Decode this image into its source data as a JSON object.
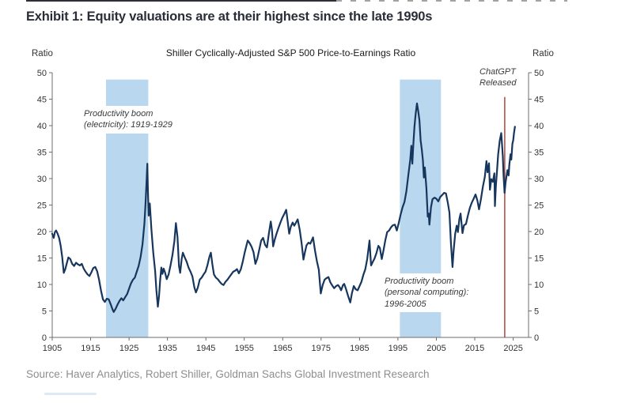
{
  "header": {
    "title": "Exhibit 1: Equity valuations are at their highest since the late 1990s"
  },
  "footer": {
    "source": "Source: Haver Analytics, Robert Shiller, Goldman Sachs Global Investment Research"
  },
  "annotations": {
    "boom1": {
      "lines": [
        "Productivity boom",
        "(electricity): 1919-1929"
      ]
    },
    "boom2": {
      "lines": [
        "Productivity boom",
        "(personal computing):",
        "1996-2005"
      ]
    },
    "event": {
      "lines": [
        "ChatGPT",
        "Released"
      ]
    }
  },
  "chart_data": {
    "type": "line",
    "title": "Shiller Cyclically-Adjusted S&P 500 Price-to-Earnings Ratio",
    "grid": false,
    "legend": "none",
    "line_color": "#17365d",
    "y_axis": {
      "label_left": "Ratio",
      "label_right": "Ratio",
      "min": 0,
      "max": 50,
      "tick_step": 5
    },
    "x_axis": {
      "min": 1905,
      "max": 2029,
      "ticks": [
        1905,
        1915,
        1925,
        1935,
        1945,
        1955,
        1965,
        1975,
        1985,
        1995,
        2005,
        2015,
        2025
      ]
    },
    "shaded_regions": [
      {
        "label": "Productivity boom (electricity): 1919-1929",
        "from": 1919,
        "to": 1930,
        "top_value": 48.7,
        "color": "#b9d7ee"
      },
      {
        "label": "Productivity boom (personal computing): 1996-2005",
        "from": 1995.5,
        "to": 2006.2,
        "top_value": 48.7,
        "color": "#b9d7ee"
      }
    ],
    "event_line": {
      "label": "ChatGPT Released",
      "year": 2022.8,
      "top_value": 45.4,
      "color": "#ab3a30"
    },
    "series": [
      {
        "name": "Shiller Cyclically-Adjusted P/E",
        "points": [
          [
            1905.0,
            19.6
          ],
          [
            1905.4,
            18.8
          ],
          [
            1905.7,
            19.9
          ],
          [
            1906.0,
            20.2
          ],
          [
            1906.4,
            19.6
          ],
          [
            1906.8,
            18.8
          ],
          [
            1907.2,
            17.3
          ],
          [
            1907.6,
            15.2
          ],
          [
            1908.0,
            12.2
          ],
          [
            1908.4,
            12.9
          ],
          [
            1908.8,
            14.0
          ],
          [
            1909.2,
            15.1
          ],
          [
            1909.7,
            14.8
          ],
          [
            1910.2,
            13.9
          ],
          [
            1910.7,
            13.5
          ],
          [
            1911.2,
            14.1
          ],
          [
            1911.7,
            13.8
          ],
          [
            1912.2,
            13.6
          ],
          [
            1912.7,
            13.9
          ],
          [
            1913.2,
            13.0
          ],
          [
            1913.7,
            12.4
          ],
          [
            1914.2,
            11.9
          ],
          [
            1914.7,
            11.6
          ],
          [
            1915.2,
            12.3
          ],
          [
            1915.7,
            13.1
          ],
          [
            1916.2,
            13.3
          ],
          [
            1916.7,
            12.5
          ],
          [
            1917.2,
            10.9
          ],
          [
            1917.7,
            8.8
          ],
          [
            1918.2,
            7.2
          ],
          [
            1918.7,
            6.7
          ],
          [
            1919.2,
            7.3
          ],
          [
            1919.7,
            7.2
          ],
          [
            1920.2,
            6.3
          ],
          [
            1920.7,
            5.3
          ],
          [
            1921.0,
            4.8
          ],
          [
            1921.5,
            5.4
          ],
          [
            1922.0,
            6.2
          ],
          [
            1922.5,
            6.9
          ],
          [
            1923.0,
            7.4
          ],
          [
            1923.5,
            7.0
          ],
          [
            1924.0,
            7.6
          ],
          [
            1924.5,
            8.2
          ],
          [
            1925.0,
            9.2
          ],
          [
            1925.5,
            10.2
          ],
          [
            1926.0,
            10.9
          ],
          [
            1926.5,
            11.3
          ],
          [
            1927.0,
            12.4
          ],
          [
            1927.5,
            13.5
          ],
          [
            1928.0,
            15.2
          ],
          [
            1928.5,
            17.6
          ],
          [
            1929.0,
            21.5
          ],
          [
            1929.3,
            25.5
          ],
          [
            1929.6,
            30.0
          ],
          [
            1929.75,
            32.8
          ],
          [
            1929.9,
            28.0
          ],
          [
            1930.1,
            23.0
          ],
          [
            1930.4,
            25.3
          ],
          [
            1930.8,
            20.5
          ],
          [
            1931.3,
            16.0
          ],
          [
            1931.8,
            12.5
          ],
          [
            1932.1,
            9.0
          ],
          [
            1932.5,
            5.8
          ],
          [
            1932.8,
            7.8
          ],
          [
            1933.1,
            10.8
          ],
          [
            1933.4,
            13.2
          ],
          [
            1933.7,
            12.0
          ],
          [
            1934.0,
            13.0
          ],
          [
            1934.4,
            12.2
          ],
          [
            1934.8,
            11.0
          ],
          [
            1935.3,
            11.9
          ],
          [
            1935.8,
            13.6
          ],
          [
            1936.3,
            15.6
          ],
          [
            1936.8,
            18.2
          ],
          [
            1937.2,
            21.6
          ],
          [
            1937.6,
            19.0
          ],
          [
            1938.0,
            13.5
          ],
          [
            1938.3,
            12.2
          ],
          [
            1938.7,
            14.8
          ],
          [
            1939.0,
            16.0
          ],
          [
            1939.5,
            15.1
          ],
          [
            1940.0,
            14.3
          ],
          [
            1940.5,
            13.2
          ],
          [
            1941.0,
            12.4
          ],
          [
            1941.5,
            11.5
          ],
          [
            1942.0,
            9.5
          ],
          [
            1942.4,
            8.5
          ],
          [
            1942.9,
            9.4
          ],
          [
            1943.4,
            10.9
          ],
          [
            1943.9,
            11.3
          ],
          [
            1944.4,
            11.9
          ],
          [
            1944.9,
            12.4
          ],
          [
            1945.4,
            13.6
          ],
          [
            1945.9,
            15.2
          ],
          [
            1946.3,
            16.0
          ],
          [
            1946.7,
            13.8
          ],
          [
            1947.1,
            11.9
          ],
          [
            1947.6,
            11.3
          ],
          [
            1948.1,
            11.0
          ],
          [
            1948.6,
            10.5
          ],
          [
            1949.1,
            10.1
          ],
          [
            1949.6,
            9.9
          ],
          [
            1950.1,
            10.5
          ],
          [
            1950.6,
            10.9
          ],
          [
            1951.1,
            11.4
          ],
          [
            1951.6,
            11.9
          ],
          [
            1952.1,
            12.4
          ],
          [
            1952.6,
            12.6
          ],
          [
            1953.1,
            12.9
          ],
          [
            1953.6,
            12.1
          ],
          [
            1954.1,
            12.9
          ],
          [
            1954.6,
            14.3
          ],
          [
            1955.1,
            16.0
          ],
          [
            1955.6,
            17.5
          ],
          [
            1955.9,
            18.3
          ],
          [
            1956.4,
            17.8
          ],
          [
            1956.9,
            17.1
          ],
          [
            1957.4,
            16.1
          ],
          [
            1957.9,
            13.9
          ],
          [
            1958.4,
            14.9
          ],
          [
            1958.9,
            16.6
          ],
          [
            1959.4,
            18.3
          ],
          [
            1959.9,
            18.8
          ],
          [
            1960.4,
            17.5
          ],
          [
            1960.9,
            17.0
          ],
          [
            1961.4,
            19.6
          ],
          [
            1961.9,
            21.9
          ],
          [
            1962.2,
            20.3
          ],
          [
            1962.5,
            17.2
          ],
          [
            1962.9,
            18.4
          ],
          [
            1963.4,
            19.6
          ],
          [
            1963.9,
            20.7
          ],
          [
            1964.4,
            21.7
          ],
          [
            1964.9,
            22.6
          ],
          [
            1965.4,
            23.3
          ],
          [
            1965.9,
            24.1
          ],
          [
            1966.3,
            21.9
          ],
          [
            1966.7,
            19.6
          ],
          [
            1967.1,
            20.9
          ],
          [
            1967.6,
            21.7
          ],
          [
            1968.0,
            21.1
          ],
          [
            1968.4,
            21.6
          ],
          [
            1968.9,
            22.3
          ],
          [
            1969.4,
            20.4
          ],
          [
            1969.9,
            17.9
          ],
          [
            1970.4,
            14.7
          ],
          [
            1970.8,
            16.1
          ],
          [
            1971.2,
            17.4
          ],
          [
            1971.7,
            17.9
          ],
          [
            1972.2,
            17.7
          ],
          [
            1972.9,
            18.9
          ],
          [
            1973.4,
            16.4
          ],
          [
            1973.9,
            14.4
          ],
          [
            1974.4,
            12.8
          ],
          [
            1974.9,
            8.3
          ],
          [
            1975.4,
            9.9
          ],
          [
            1975.9,
            10.9
          ],
          [
            1976.4,
            11.2
          ],
          [
            1976.9,
            11.4
          ],
          [
            1977.4,
            10.4
          ],
          [
            1977.9,
            9.8
          ],
          [
            1978.4,
            9.3
          ],
          [
            1978.9,
            9.7
          ],
          [
            1979.4,
            9.9
          ],
          [
            1979.9,
            9.4
          ],
          [
            1980.2,
            8.9
          ],
          [
            1980.7,
            9.9
          ],
          [
            1981.0,
            10.1
          ],
          [
            1981.5,
            9.1
          ],
          [
            1982.0,
            7.9
          ],
          [
            1982.6,
            6.6
          ],
          [
            1983.0,
            8.3
          ],
          [
            1983.5,
            9.7
          ],
          [
            1984.0,
            9.1
          ],
          [
            1984.5,
            8.9
          ],
          [
            1985.0,
            9.7
          ],
          [
            1985.5,
            10.5
          ],
          [
            1986.0,
            11.8
          ],
          [
            1986.5,
            12.9
          ],
          [
            1987.0,
            14.8
          ],
          [
            1987.6,
            18.3
          ],
          [
            1987.8,
            15.8
          ],
          [
            1988.0,
            13.6
          ],
          [
            1988.4,
            14.2
          ],
          [
            1988.9,
            14.9
          ],
          [
            1989.4,
            15.9
          ],
          [
            1989.9,
            17.3
          ],
          [
            1990.3,
            16.9
          ],
          [
            1990.8,
            14.8
          ],
          [
            1991.2,
            16.3
          ],
          [
            1991.7,
            18.3
          ],
          [
            1992.2,
            19.9
          ],
          [
            1992.7,
            20.2
          ],
          [
            1993.2,
            20.8
          ],
          [
            1993.7,
            21.2
          ],
          [
            1994.2,
            21.3
          ],
          [
            1994.7,
            20.2
          ],
          [
            1995.2,
            21.6
          ],
          [
            1995.7,
            23.2
          ],
          [
            1996.2,
            24.6
          ],
          [
            1996.7,
            25.6
          ],
          [
            1997.2,
            27.6
          ],
          [
            1997.7,
            30.6
          ],
          [
            1998.2,
            33.6
          ],
          [
            1998.5,
            36.2
          ],
          [
            1998.75,
            32.8
          ],
          [
            1999.0,
            36.5
          ],
          [
            1999.3,
            39.8
          ],
          [
            1999.6,
            42.2
          ],
          [
            1999.95,
            44.2
          ],
          [
            2000.3,
            42.6
          ],
          [
            2000.6,
            41.0
          ],
          [
            2000.9,
            37.2
          ],
          [
            2001.2,
            35.6
          ],
          [
            2001.5,
            33.4
          ],
          [
            2001.75,
            30.2
          ],
          [
            2002.0,
            32.1
          ],
          [
            2002.4,
            28.2
          ],
          [
            2002.75,
            22.8
          ],
          [
            2003.0,
            23.4
          ],
          [
            2003.2,
            21.3
          ],
          [
            2003.6,
            24.6
          ],
          [
            2004.0,
            26.1
          ],
          [
            2004.5,
            26.4
          ],
          [
            2005.0,
            26.2
          ],
          [
            2005.5,
            25.7
          ],
          [
            2006.0,
            26.5
          ],
          [
            2006.5,
            26.9
          ],
          [
            2007.0,
            27.3
          ],
          [
            2007.5,
            27.2
          ],
          [
            2008.0,
            25.4
          ],
          [
            2008.4,
            23.6
          ],
          [
            2008.8,
            17.8
          ],
          [
            2009.2,
            13.3
          ],
          [
            2009.5,
            16.4
          ],
          [
            2009.9,
            19.6
          ],
          [
            2010.3,
            21.1
          ],
          [
            2010.6,
            19.9
          ],
          [
            2011.0,
            22.4
          ],
          [
            2011.3,
            23.4
          ],
          [
            2011.8,
            19.7
          ],
          [
            2012.2,
            21.2
          ],
          [
            2012.7,
            21.4
          ],
          [
            2013.2,
            23.0
          ],
          [
            2013.7,
            24.4
          ],
          [
            2014.2,
            25.4
          ],
          [
            2014.7,
            26.2
          ],
          [
            2015.2,
            27.0
          ],
          [
            2015.7,
            25.8
          ],
          [
            2016.1,
            24.2
          ],
          [
            2016.6,
            26.1
          ],
          [
            2017.1,
            28.4
          ],
          [
            2017.6,
            30.3
          ],
          [
            2018.05,
            33.3
          ],
          [
            2018.3,
            31.2
          ],
          [
            2018.7,
            32.9
          ],
          [
            2018.95,
            27.9
          ],
          [
            2019.3,
            29.9
          ],
          [
            2019.7,
            29.4
          ],
          [
            2020.1,
            31.0
          ],
          [
            2020.25,
            24.8
          ],
          [
            2020.5,
            28.6
          ],
          [
            2020.8,
            31.6
          ],
          [
            2021.1,
            34.6
          ],
          [
            2021.5,
            37.2
          ],
          [
            2021.9,
            38.6
          ],
          [
            2022.1,
            36.4
          ],
          [
            2022.3,
            34.2
          ],
          [
            2022.5,
            30.6
          ],
          [
            2022.75,
            27.3
          ],
          [
            2023.0,
            29.2
          ],
          [
            2023.2,
            30.1
          ],
          [
            2023.5,
            31.6
          ],
          [
            2023.8,
            30.6
          ],
          [
            2024.0,
            32.6
          ],
          [
            2024.3,
            34.6
          ],
          [
            2024.5,
            33.6
          ],
          [
            2024.8,
            36.6
          ],
          [
            2025.0,
            37.2
          ],
          [
            2025.2,
            38.6
          ],
          [
            2025.45,
            39.8
          ]
        ]
      }
    ]
  }
}
